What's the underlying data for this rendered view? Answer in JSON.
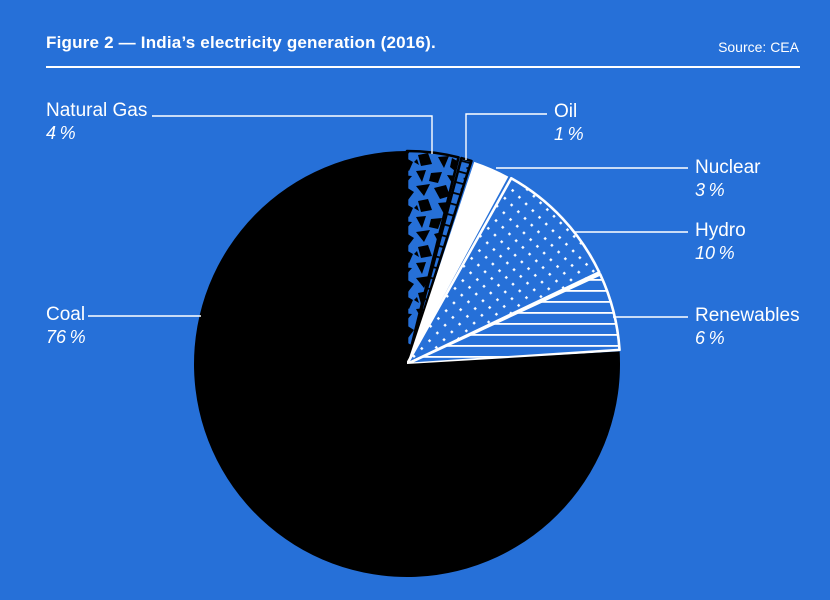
{
  "page": {
    "background": "#2670D8",
    "text_color": "#FFFFFF"
  },
  "header": {
    "title": "Figure 2 — India’s electricity generation (2016).",
    "source": "Source: CEA"
  },
  "chart_data": {
    "type": "pie",
    "title": "India’s electricity generation (2016)",
    "unit": "percent",
    "start_angle_deg": 0,
    "direction": "clockwise",
    "legend_position": "callout-labels",
    "slices": [
      {
        "label": "Natural Gas",
        "value": 4,
        "pct_label": "4 %",
        "pattern": "crackle",
        "base_color": "#2670D8",
        "pattern_color": "#000000",
        "stroke": "#000000"
      },
      {
        "label": "Oil",
        "value": 1,
        "pct_label": "1 %",
        "pattern": "ticks",
        "base_color": "#2670D8",
        "pattern_color": "#000000",
        "stroke": "#000000"
      },
      {
        "label": "Nuclear",
        "value": 3,
        "pct_label": "3 %",
        "pattern": "solid",
        "base_color": "#FFFFFF",
        "pattern_color": "",
        "stroke": "none"
      },
      {
        "label": "Hydro",
        "value": 10,
        "pct_label": "10 %",
        "pattern": "dots",
        "base_color": "#2670D8",
        "pattern_color": "#FFFFFF",
        "stroke": "#FFFFFF"
      },
      {
        "label": "Renewables",
        "value": 6,
        "pct_label": "6 %",
        "pattern": "hlines",
        "base_color": "#2670D8",
        "pattern_color": "#FFFFFF",
        "stroke": "#FFFFFF"
      },
      {
        "label": "Coal",
        "value": 76,
        "pct_label": "76 %",
        "pattern": "solid",
        "base_color": "#000000",
        "pattern_color": "",
        "stroke": "none"
      }
    ]
  }
}
